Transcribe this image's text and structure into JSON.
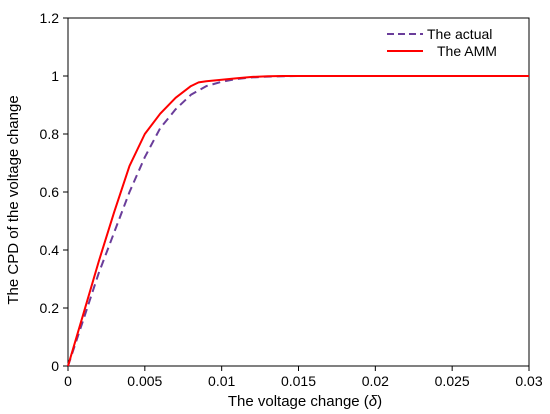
{
  "chart_data": {
    "type": "line",
    "title": "",
    "xlabel_prefix": "The voltage change (",
    "xlabel_symbol": "δ",
    "xlabel_suffix": ")",
    "ylabel": "The CPD of the voltage change",
    "xlim": [
      0,
      0.03
    ],
    "ylim": [
      0,
      1.2
    ],
    "x_ticks": [
      0,
      0.005,
      0.01,
      0.015,
      0.02,
      0.025,
      0.03
    ],
    "x_tick_labels": [
      "0",
      "0.005",
      "0.01",
      "0.015",
      "0.02",
      "0.025",
      "0.03"
    ],
    "y_ticks": [
      0,
      0.2,
      0.4,
      0.6,
      0.8,
      1.0,
      1.2
    ],
    "y_tick_labels": [
      "0",
      "0.2",
      "0.4",
      "0.6",
      "0.8",
      "1",
      "1.2"
    ],
    "grid": false,
    "legend_position": "top-right",
    "series": [
      {
        "name": "The actual",
        "color": "#6a3d9a",
        "style": "dashed",
        "x": [
          0,
          0.001,
          0.002,
          0.003,
          0.004,
          0.005,
          0.006,
          0.007,
          0.008,
          0.009,
          0.01,
          0.011,
          0.012,
          0.013,
          0.014,
          0.015,
          0.016,
          0.03
        ],
        "y": [
          0,
          0.16,
          0.32,
          0.46,
          0.6,
          0.72,
          0.82,
          0.885,
          0.935,
          0.965,
          0.98,
          0.99,
          0.995,
          0.998,
          0.999,
          1.0,
          1.0,
          1.0
        ]
      },
      {
        "name": "The AMM",
        "color": "#ff0000",
        "style": "solid",
        "x": [
          0,
          0.001,
          0.002,
          0.003,
          0.004,
          0.005,
          0.006,
          0.007,
          0.008,
          0.0085,
          0.009,
          0.01,
          0.011,
          0.012,
          0.013,
          0.014,
          0.015,
          0.03
        ],
        "y": [
          0,
          0.18,
          0.36,
          0.53,
          0.69,
          0.8,
          0.87,
          0.925,
          0.965,
          0.978,
          0.982,
          0.987,
          0.992,
          0.997,
          0.999,
          1.0,
          1.0,
          1.0
        ]
      }
    ]
  }
}
